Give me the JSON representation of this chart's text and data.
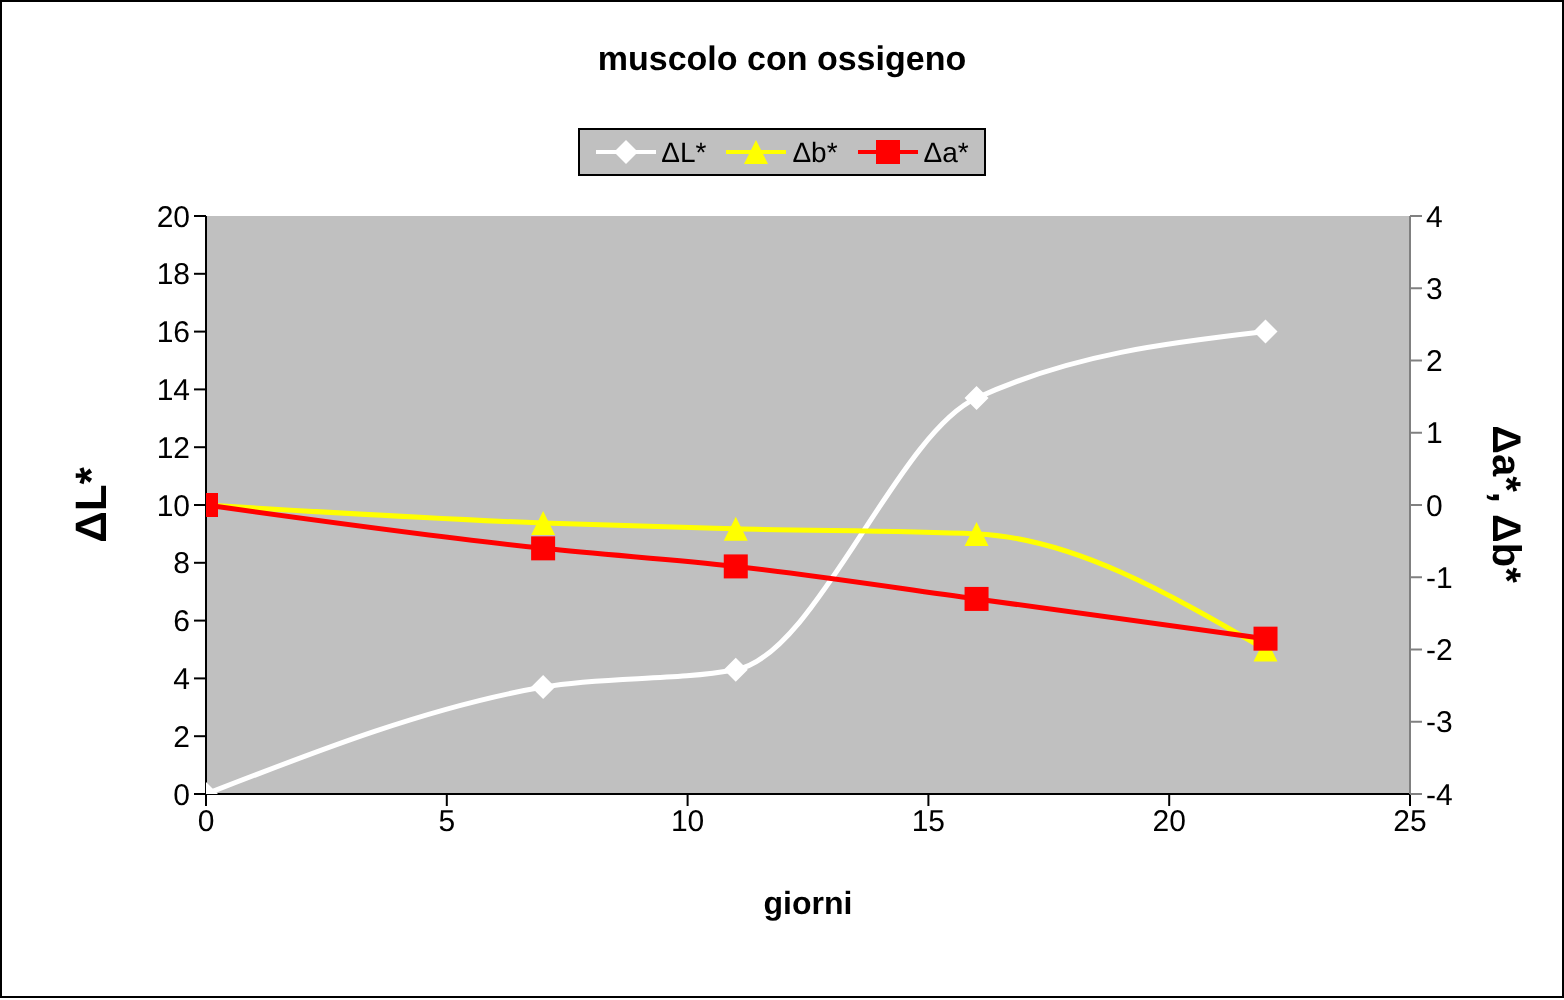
{
  "chart_data": {
    "type": "line",
    "title": "muscolo con ossigeno",
    "xlabel": "giorni",
    "ylabel": "ΔL*",
    "y2label": "Δa*, Δb*",
    "x": [
      0,
      7,
      11,
      16,
      22
    ],
    "series": [
      {
        "name": "ΔL*",
        "color": "#ffffff",
        "marker": "diamond",
        "values": [
          0,
          3.7,
          4.3,
          13.7,
          16
        ]
      },
      {
        "name": "Δb*",
        "color": "#ffff00",
        "marker": "triangle",
        "axis": "y2",
        "values": [
          0,
          -0.25,
          -0.33,
          -0.4,
          -2.0
        ]
      },
      {
        "name": "Δa*",
        "color": "#ff0000",
        "marker": "square",
        "axis": "y2",
        "values": [
          0,
          -0.6,
          -0.85,
          -1.3,
          -1.85
        ]
      }
    ],
    "xlim": [
      0,
      25
    ],
    "xticks": [
      0,
      5,
      10,
      15,
      20,
      25
    ],
    "ylim": [
      0,
      20
    ],
    "yticks": [
      0,
      2,
      4,
      6,
      8,
      10,
      12,
      14,
      16,
      18,
      20
    ],
    "y2lim": [
      -4,
      4
    ],
    "y2ticks": [
      -4,
      -3,
      -2,
      -1,
      0,
      1,
      2,
      3,
      4
    ],
    "grid": false,
    "legend": "top",
    "line_style": "solid"
  }
}
